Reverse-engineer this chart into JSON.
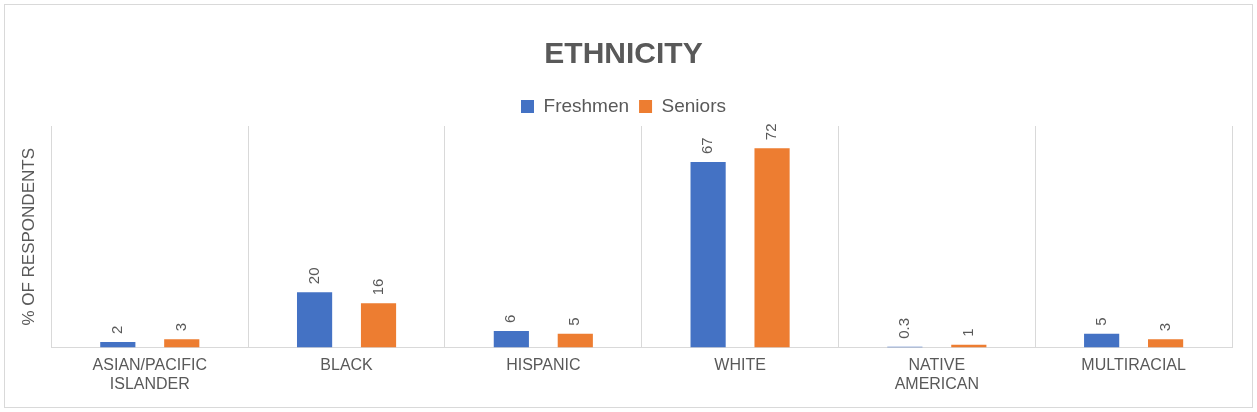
{
  "chart_data": {
    "type": "bar",
    "title": "ETHNICITY",
    "ylabel": "% OF RESPONDENTS",
    "categories": [
      "ASIAN/PACIFIC ISLANDER",
      "BLACK",
      "HISPANIC",
      "WHITE",
      "NATIVE AMERICAN",
      "MULTIRACIAL"
    ],
    "series": [
      {
        "name": "Freshmen",
        "color": "#4472c4",
        "values": [
          2,
          20,
          6,
          67,
          0.3,
          5
        ]
      },
      {
        "name": "Seniors",
        "color": "#ed7d31",
        "values": [
          3,
          16,
          5,
          72,
          1,
          3
        ]
      }
    ],
    "data_labels": true,
    "grid": "x",
    "legend": "top"
  }
}
